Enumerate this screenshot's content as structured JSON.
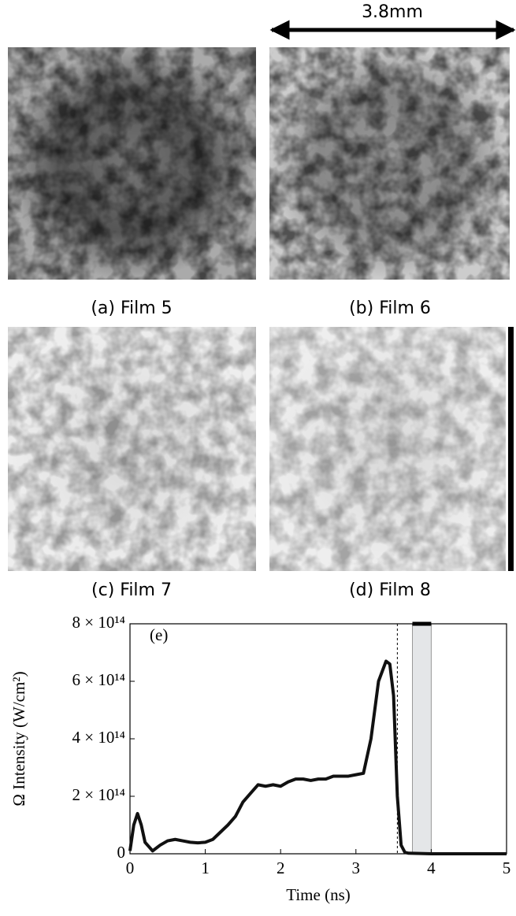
{
  "scale_bar": {
    "label": "3.8mm"
  },
  "panels": [
    {
      "caption": "(a) Film 5"
    },
    {
      "caption": "(b) Film 6"
    },
    {
      "caption": "(c) Film 7"
    },
    {
      "caption": "(d) Film 8"
    }
  ],
  "chart_data": {
    "type": "line",
    "annotation": "(e)",
    "x_label": "Time (ns)",
    "y_label": "Ω Intensity (W/cm²)",
    "x": [
      0,
      0.05,
      0.1,
      0.15,
      0.2,
      0.3,
      0.4,
      0.5,
      0.6,
      0.7,
      0.8,
      0.9,
      1.0,
      1.1,
      1.2,
      1.3,
      1.4,
      1.5,
      1.6,
      1.7,
      1.8,
      1.9,
      2.0,
      2.1,
      2.2,
      2.3,
      2.4,
      2.5,
      2.6,
      2.7,
      2.8,
      2.9,
      3.0,
      3.1,
      3.2,
      3.3,
      3.4,
      3.45,
      3.5,
      3.55,
      3.6,
      3.65,
      3.7,
      4.0,
      4.5,
      5.0
    ],
    "values": [
      10000000000000.0,
      100000000000000.0,
      140000000000000.0,
      100000000000000.0,
      40000000000000.0,
      10000000000000.0,
      30000000000000.0,
      45000000000000.0,
      50000000000000.0,
      45000000000000.0,
      40000000000000.0,
      38000000000000.0,
      40000000000000.0,
      50000000000000.0,
      75000000000000.0,
      100000000000000.0,
      130000000000000.0,
      180000000000000.0,
      210000000000000.0,
      240000000000000.0,
      235000000000000.0,
      240000000000000.0,
      235000000000000.0,
      250000000000000.0,
      260000000000000.0,
      260000000000000.0,
      255000000000000.0,
      260000000000000.0,
      260000000000000.0,
      270000000000000.0,
      270000000000000.0,
      270000000000000.0,
      275000000000000.0,
      280000000000000.0,
      400000000000000.0,
      600000000000000.0,
      670000000000000.0,
      660000000000000.0,
      550000000000000.0,
      200000000000000.0,
      30000000000000.0,
      5000000000000.0,
      2000000000000.0,
      0,
      0,
      0
    ],
    "color": "#111111",
    "xlim": [
      0,
      5
    ],
    "xticks": [
      0,
      1,
      2,
      3,
      4,
      5
    ],
    "ylim": [
      0,
      800000000000000.0
    ],
    "yticks": [
      0,
      {
        "value": 200000000000000.0,
        "label": "2 × 10¹⁴"
      },
      {
        "value": 400000000000000.0,
        "label": "4 × 10¹⁴"
      },
      {
        "value": 600000000000000.0,
        "label": "6 × 10¹⁴"
      },
      {
        "value": 800000000000000.0,
        "label": "8 × 10¹⁴"
      }
    ],
    "dashed_line_x": 3.55,
    "shaded_span": [
      3.75,
      4.0
    ]
  }
}
